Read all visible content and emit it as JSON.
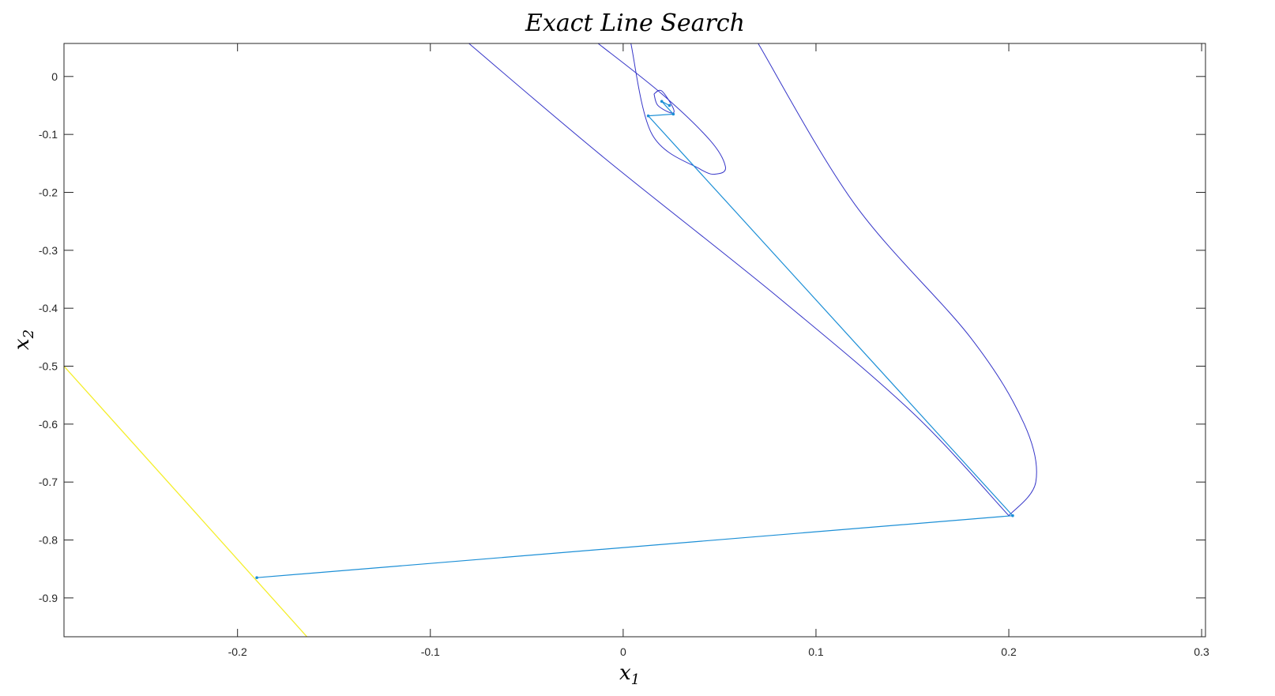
{
  "chart_data": {
    "type": "line",
    "title": "Exact Line Search",
    "xlabel": "x_1",
    "ylabel": "x_2",
    "xlabel_main": "x",
    "xlabel_sub": "1",
    "ylabel_main": "x",
    "ylabel_sub": "2",
    "xlim": [
      -0.29,
      0.302
    ],
    "ylim": [
      -0.967,
      0.057
    ],
    "xticks": [
      -0.2,
      -0.1,
      0,
      0.1,
      0.2,
      0.3
    ],
    "xtick_labels": [
      "-0.2",
      "-0.1",
      "0",
      "0.1",
      "0.2",
      "0.3"
    ],
    "yticks": [
      0,
      -0.1,
      -0.2,
      -0.3,
      -0.4,
      -0.5,
      -0.6,
      -0.7,
      -0.8,
      -0.9
    ],
    "ytick_labels": [
      "0",
      "-0.1",
      "-0.2",
      "-0.3",
      "-0.4",
      "-0.5",
      "-0.6",
      "-0.7",
      "-0.8",
      "-0.9"
    ],
    "grid": false,
    "contour_color": "#3535c8",
    "boundary_color": "#f4ee2a",
    "path_color": "#1c8fd6",
    "contours": [
      {
        "x": [
          0.2,
          0.214,
          0.208,
          0.18,
          0.12,
          0.07
        ],
        "y": [
          -0.758,
          -0.7,
          -0.6,
          -0.45,
          -0.22,
          0.057
        ]
      },
      {
        "x": [
          -0.08,
          -0.01,
          0.08,
          0.15,
          0.2
        ],
        "y": [
          0.057,
          -0.14,
          -0.38,
          -0.58,
          -0.758
        ]
      },
      {
        "x": [
          -0.013,
          0.02,
          0.045,
          0.053,
          0.049,
          0.04,
          0.015,
          0.004
        ],
        "y": [
          0.057,
          -0.03,
          -0.11,
          -0.155,
          -0.168,
          -0.16,
          -0.1,
          0.057
        ]
      },
      {
        "x": [
          0.016,
          0.02,
          0.026,
          0.025,
          0.018,
          0.016
        ],
        "y": [
          -0.03,
          -0.025,
          -0.055,
          -0.063,
          -0.05,
          -0.03
        ]
      }
    ],
    "boundary_line": {
      "x": [
        -0.29,
        -0.164
      ],
      "y": [
        -0.5,
        -0.967
      ]
    },
    "iterates": {
      "x": [
        -0.19,
        0.202,
        0.013,
        0.026,
        0.02,
        0.024
      ],
      "y": [
        -0.865,
        -0.758,
        -0.068,
        -0.065,
        -0.043,
        -0.05
      ]
    }
  }
}
